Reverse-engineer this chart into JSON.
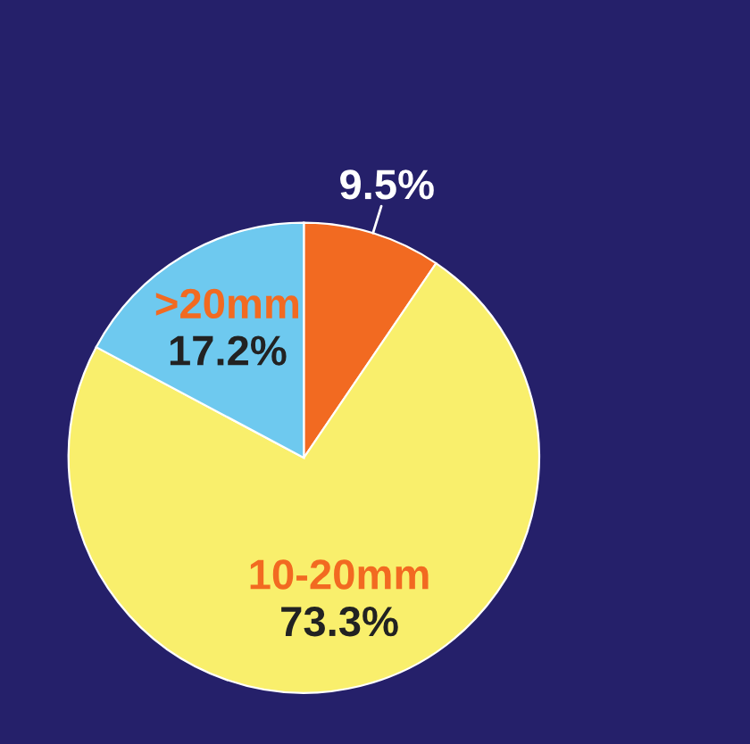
{
  "chart_data": {
    "type": "pie",
    "categories": [
      null,
      "10-20mm",
      ">20mm"
    ],
    "values": [
      9.5,
      73.3,
      17.2
    ],
    "value_labels": [
      "9.5%",
      "73.3%",
      "17.2%"
    ],
    "colors": [
      "#f26a21",
      "#f9ef6c",
      "#6ec9ef"
    ],
    "legend": false
  }
}
